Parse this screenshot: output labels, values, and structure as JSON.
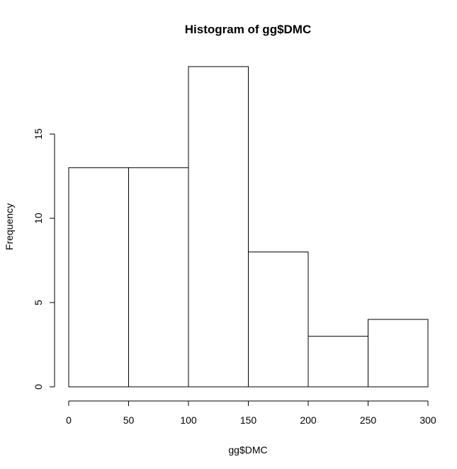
{
  "chart_data": {
    "type": "bar",
    "title": "Histogram of gg$DMC",
    "xlabel": "gg$DMC",
    "ylabel": "Frequency",
    "bins": [
      {
        "start": 0,
        "end": 50,
        "value": 13
      },
      {
        "start": 50,
        "end": 100,
        "value": 13
      },
      {
        "start": 100,
        "end": 150,
        "value": 19
      },
      {
        "start": 150,
        "end": 200,
        "value": 8
      },
      {
        "start": 200,
        "end": 250,
        "value": 3
      },
      {
        "start": 250,
        "end": 300,
        "value": 4
      }
    ],
    "xlim": [
      0,
      300
    ],
    "ylim": [
      0,
      19
    ],
    "x_ticks": [
      0,
      50,
      100,
      150,
      200,
      250,
      300
    ],
    "y_ticks": [
      0,
      5,
      10,
      15
    ],
    "grid": false,
    "colors": {
      "bar_fill": "#ffffff",
      "bar_stroke": "#000000",
      "axis": "#000000",
      "background": "#ffffff"
    }
  }
}
